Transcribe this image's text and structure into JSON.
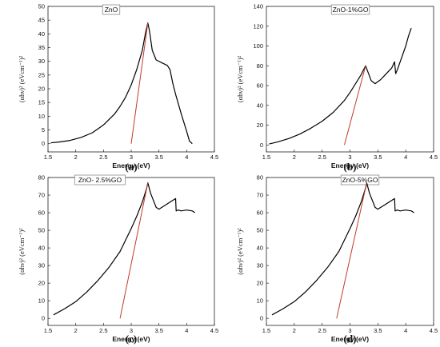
{
  "chart_data": [
    {
      "type": "line",
      "panel_label": "(a)",
      "title": "ZnO",
      "xlabel": "Energy (eV)",
      "ylabel": "(αhν)² (eVcm⁻¹)²",
      "xlim": [
        1.5,
        4.5
      ],
      "ylim": [
        -3,
        50
      ],
      "xticks": [
        1.5,
        2.0,
        2.5,
        3.0,
        3.5,
        4.0,
        4.5
      ],
      "yticks": [
        0,
        5,
        10,
        15,
        20,
        25,
        30,
        35,
        40,
        45,
        50
      ],
      "series": [
        {
          "type": "curve",
          "color": "#000000",
          "x": [
            1.55,
            1.7,
            1.9,
            2.1,
            2.3,
            2.5,
            2.7,
            2.8,
            2.9,
            3.0,
            3.1,
            3.2,
            3.26,
            3.3,
            3.33,
            3.38,
            3.45,
            3.55,
            3.65,
            3.7,
            3.75,
            3.8,
            3.9,
            4.0,
            4.05,
            4.1
          ],
          "y": [
            0.3,
            0.6,
            1.2,
            2.3,
            4.0,
            6.8,
            10.8,
            13.6,
            17.0,
            21.4,
            27.0,
            34.0,
            40.5,
            44.0,
            41.0,
            34.0,
            30.5,
            29.5,
            28.5,
            27.0,
            22.0,
            18.0,
            11.0,
            4.5,
            1.0,
            0.0
          ]
        },
        {
          "type": "tangent",
          "color": "#c0392b",
          "x": [
            3.0,
            3.3
          ],
          "y": [
            0.0,
            44.0
          ]
        }
      ]
    },
    {
      "type": "line",
      "panel_label": "(b)",
      "title": "ZnO-1%GO",
      "xlabel": "Energy (eV)",
      "ylabel": "(αhν)² (eVcm⁻¹)²",
      "xlim": [
        1.5,
        4.5
      ],
      "ylim": [
        -7,
        140
      ],
      "xticks": [
        1.5,
        2.0,
        2.5,
        3.0,
        3.5,
        4.0,
        4.5
      ],
      "yticks": [
        0,
        20,
        40,
        60,
        80,
        100,
        120,
        140
      ],
      "series": [
        {
          "type": "curve",
          "color": "#000000",
          "x": [
            1.55,
            1.7,
            1.9,
            2.1,
            2.3,
            2.5,
            2.7,
            2.9,
            3.0,
            3.1,
            3.2,
            3.28,
            3.32,
            3.38,
            3.45,
            3.55,
            3.65,
            3.75,
            3.8,
            3.82,
            3.85,
            3.9,
            4.0,
            4.05,
            4.1
          ],
          "y": [
            1.0,
            3.0,
            6.5,
            11.0,
            17.0,
            24.0,
            33.0,
            45.0,
            53.0,
            62.0,
            71.0,
            80.0,
            74.0,
            65.0,
            62.0,
            66.0,
            72.0,
            78.0,
            84.0,
            72.0,
            76.0,
            84.0,
            100.0,
            110.0,
            118.0
          ]
        },
        {
          "type": "tangent",
          "color": "#c0392b",
          "x": [
            2.9,
            3.28
          ],
          "y": [
            0.0,
            80.0
          ]
        }
      ]
    },
    {
      "type": "line",
      "panel_label": "(c)",
      "title": "ZnO- 2.5%GO",
      "xlabel": "Energy (eV)",
      "ylabel": "(αhν)² (eVcm⁻¹)²",
      "xlim": [
        1.5,
        4.5
      ],
      "ylim": [
        -4,
        80
      ],
      "xticks": [
        1.5,
        2.0,
        2.5,
        3.0,
        3.5,
        4.0,
        4.5
      ],
      "yticks": [
        0,
        10,
        20,
        30,
        40,
        50,
        60,
        70,
        80
      ],
      "series": [
        {
          "type": "curve",
          "color": "#000000",
          "x": [
            1.6,
            1.8,
            2.0,
            2.2,
            2.4,
            2.6,
            2.8,
            3.0,
            3.1,
            3.2,
            3.28,
            3.3,
            3.35,
            3.45,
            3.5,
            3.6,
            3.7,
            3.8,
            3.81,
            3.85,
            3.9,
            4.0,
            4.1,
            4.15
          ],
          "y": [
            2.0,
            5.5,
            9.5,
            15.0,
            21.5,
            29.0,
            38.0,
            51.0,
            58.0,
            66.0,
            74.0,
            77.0,
            71.0,
            63.0,
            62.0,
            64.0,
            66.0,
            68.0,
            61.0,
            61.5,
            61.0,
            61.5,
            61.0,
            60.0
          ]
        },
        {
          "type": "tangent",
          "color": "#c0392b",
          "x": [
            2.8,
            3.3
          ],
          "y": [
            0.0,
            77.0
          ]
        }
      ]
    },
    {
      "type": "line",
      "panel_label": "(d)",
      "title": "ZnO-5%GO",
      "xlabel": "Energy (eV)",
      "ylabel": "(αhν)² (eVcm⁻¹)²",
      "xlim": [
        1.5,
        4.5
      ],
      "ylim": [
        -4,
        80
      ],
      "xticks": [
        1.5,
        2.0,
        2.5,
        3.0,
        3.5,
        4.0,
        4.5
      ],
      "yticks": [
        0,
        10,
        20,
        30,
        40,
        50,
        60,
        70,
        80
      ],
      "series": [
        {
          "type": "curve",
          "color": "#000000",
          "x": [
            1.6,
            1.8,
            2.0,
            2.2,
            2.4,
            2.6,
            2.8,
            3.0,
            3.1,
            3.2,
            3.28,
            3.3,
            3.35,
            3.45,
            3.5,
            3.6,
            3.7,
            3.8,
            3.81,
            3.85,
            3.9,
            4.0,
            4.1,
            4.15
          ],
          "y": [
            2.0,
            5.5,
            9.5,
            15.0,
            21.5,
            29.0,
            38.0,
            51.0,
            58.0,
            66.0,
            74.0,
            77.0,
            71.0,
            63.0,
            62.0,
            64.0,
            66.0,
            68.0,
            61.0,
            61.5,
            61.0,
            61.5,
            61.0,
            60.0
          ]
        },
        {
          "type": "tangent",
          "color": "#c0392b",
          "x": [
            2.76,
            3.3
          ],
          "y": [
            0.0,
            77.0
          ]
        }
      ]
    }
  ]
}
